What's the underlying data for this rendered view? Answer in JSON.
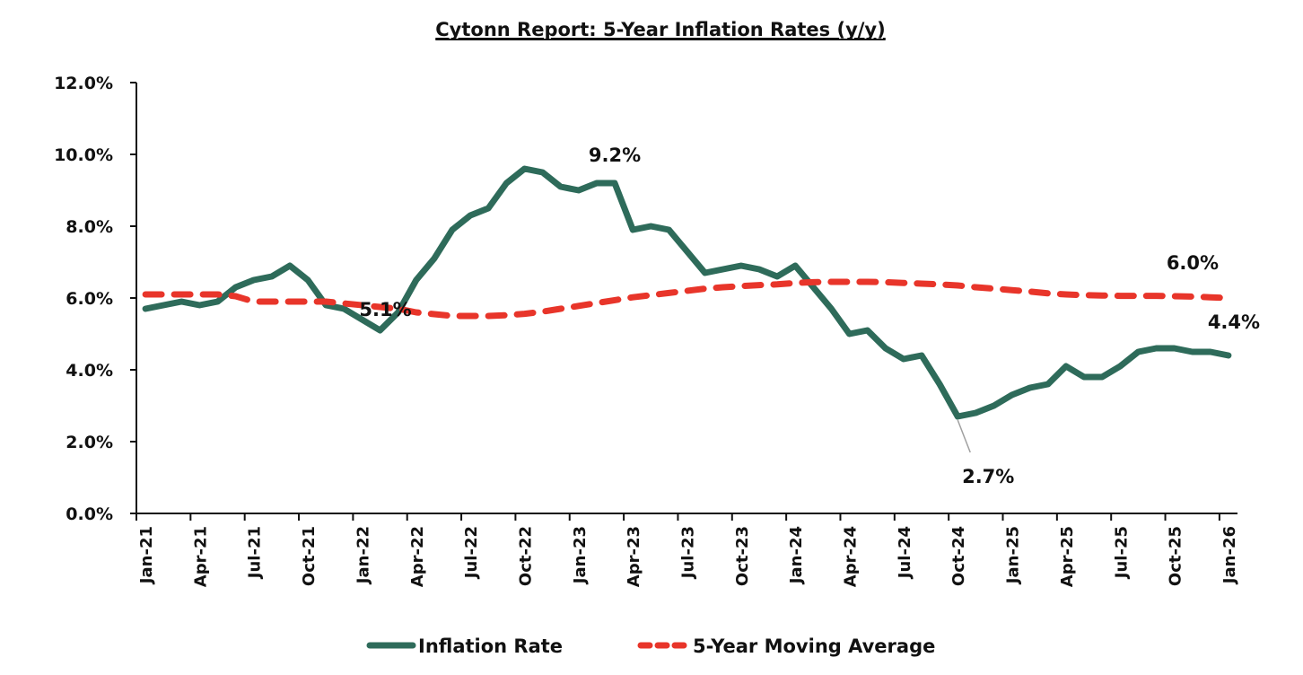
{
  "chart_data": {
    "type": "line",
    "title": "Cytonn Report: 5-Year Inflation Rates (y/y)",
    "xlabel": "",
    "ylabel": "",
    "ylim": [
      0,
      12
    ],
    "yticks": [
      "0.0%",
      "2.0%",
      "4.0%",
      "6.0%",
      "8.0%",
      "10.0%",
      "12.0%"
    ],
    "ytick_values": [
      0,
      2,
      4,
      6,
      8,
      10,
      12
    ],
    "grid": false,
    "legend_position": "bottom",
    "x": [
      "Jan-21",
      "Feb-21",
      "Mar-21",
      "Apr-21",
      "May-21",
      "Jun-21",
      "Jul-21",
      "Aug-21",
      "Sep-21",
      "Oct-21",
      "Nov-21",
      "Dec-21",
      "Jan-22",
      "Feb-22",
      "Mar-22",
      "Apr-22",
      "May-22",
      "Jun-22",
      "Jul-22",
      "Aug-22",
      "Sep-22",
      "Oct-22",
      "Nov-22",
      "Dec-22",
      "Jan-23",
      "Feb-23",
      "Mar-23",
      "Apr-23",
      "May-23",
      "Jun-23",
      "Jul-23",
      "Aug-23",
      "Sep-23",
      "Oct-23",
      "Nov-23",
      "Dec-23",
      "Jan-24",
      "Feb-24",
      "Mar-24",
      "Apr-24",
      "May-24",
      "Jun-24",
      "Jul-24",
      "Aug-24",
      "Sep-24",
      "Oct-24",
      "Nov-24",
      "Dec-24",
      "Jan-25",
      "Feb-25",
      "Mar-25",
      "Apr-25",
      "May-25",
      "Jun-25",
      "Jul-25",
      "Aug-25",
      "Sep-25",
      "Oct-25",
      "Nov-25",
      "Dec-25",
      "Jan-26"
    ],
    "xtick_labels": [
      "Jan-21",
      "Apr-21",
      "Jul-21",
      "Oct-21",
      "Jan-22",
      "Apr-22",
      "Jul-22",
      "Oct-22",
      "Jan-23",
      "Apr-23",
      "Jul-23",
      "Oct-23",
      "Jan-24",
      "Apr-24",
      "Jul-24",
      "Oct-24",
      "Jan-25",
      "Apr-25",
      "Jul-25",
      "Oct-25",
      "Jan-26"
    ],
    "series": [
      {
        "name": "Inflation Rate",
        "color": "#2e6b5a",
        "style": "solid",
        "values": [
          5.7,
          5.8,
          5.9,
          5.8,
          5.9,
          6.3,
          6.5,
          6.6,
          6.9,
          6.5,
          5.8,
          5.7,
          5.4,
          5.1,
          5.6,
          6.5,
          7.1,
          7.9,
          8.3,
          8.5,
          9.2,
          9.6,
          9.5,
          9.1,
          9.0,
          9.2,
          9.2,
          7.9,
          8.0,
          7.9,
          7.3,
          6.7,
          6.8,
          6.9,
          6.8,
          6.6,
          6.9,
          6.3,
          5.7,
          5.0,
          5.1,
          4.6,
          4.3,
          4.4,
          3.6,
          2.7,
          2.8,
          3.0,
          3.3,
          3.5,
          3.6,
          4.1,
          3.8,
          3.8,
          4.1,
          4.5,
          4.6,
          4.6,
          4.5,
          4.5,
          4.4
        ]
      },
      {
        "name": "5-Year Moving Average",
        "color": "#e8352a",
        "style": "dashed",
        "values": [
          6.1,
          6.1,
          6.1,
          6.1,
          6.1,
          6.05,
          5.9,
          5.9,
          5.9,
          5.9,
          5.9,
          5.85,
          5.8,
          5.75,
          5.7,
          5.6,
          5.55,
          5.5,
          5.5,
          5.5,
          5.52,
          5.56,
          5.62,
          5.7,
          5.78,
          5.86,
          5.94,
          6.02,
          6.08,
          6.14,
          6.2,
          6.26,
          6.3,
          6.33,
          6.36,
          6.38,
          6.42,
          6.44,
          6.45,
          6.45,
          6.45,
          6.44,
          6.42,
          6.4,
          6.38,
          6.35,
          6.3,
          6.26,
          6.22,
          6.18,
          6.13,
          6.1,
          6.08,
          6.07,
          6.06,
          6.06,
          6.06,
          6.05,
          6.04,
          6.02,
          6.0
        ]
      }
    ],
    "annotations": [
      {
        "label": "5.1%",
        "series": "Inflation Rate",
        "x": "Feb-22",
        "value": 5.1
      },
      {
        "label": "9.2%",
        "series": "Inflation Rate",
        "x": "Mar-23",
        "value": 9.2
      },
      {
        "label": "2.7%",
        "series": "Inflation Rate",
        "x": "Oct-24",
        "value": 2.7
      },
      {
        "label": "4.4%",
        "series": "Inflation Rate",
        "x": "Jan-26",
        "value": 4.4
      },
      {
        "label": "6.0%",
        "series": "5-Year Moving Average",
        "x": "Jan-26",
        "value": 6.0
      }
    ]
  }
}
